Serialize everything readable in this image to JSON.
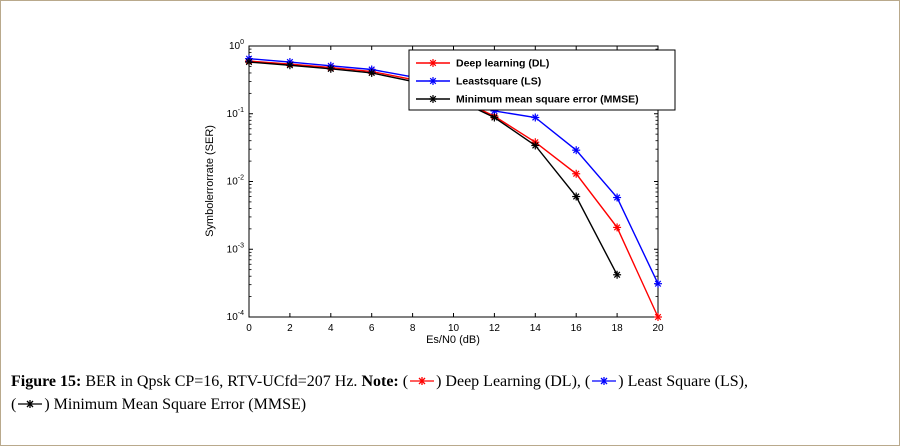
{
  "colors": {
    "dl": "#ff0000",
    "ls": "#0000ff",
    "mmse": "#000000",
    "axis": "#000000",
    "frame_border": "#b9a98c",
    "background": "#ffffff"
  },
  "chart_data": {
    "type": "line",
    "title": "",
    "xlabel": "Es/N0 (dB)",
    "ylabel": "Symbolerrorrate (SER)",
    "xlim": [
      0,
      20
    ],
    "ylog_min": -4,
    "ylog_max": 0,
    "xticks": [
      0,
      2,
      4,
      6,
      8,
      10,
      12,
      14,
      16,
      18,
      20
    ],
    "ytick_exponents": [
      0,
      -1,
      -2,
      -3,
      -4
    ],
    "grid": false,
    "legend": {
      "position": "upper-right-inside",
      "bold": true,
      "border": "#000000",
      "fill": "#ffffff"
    },
    "series": [
      {
        "name": "Deep learning (DL)",
        "color": "#ff0000",
        "marker": "asterisk",
        "x": [
          0,
          2,
          4,
          6,
          8,
          10,
          12,
          14,
          16,
          18,
          20
        ],
        "y": [
          0.6,
          0.54,
          0.48,
          0.42,
          0.32,
          0.18,
          0.092,
          0.038,
          0.013,
          0.0021,
          0.0001
        ]
      },
      {
        "name": "Leastsquare (LS)",
        "color": "#0000ff",
        "marker": "asterisk",
        "x": [
          0,
          2,
          4,
          6,
          8,
          10,
          12,
          14,
          16,
          18,
          20
        ],
        "y": [
          0.65,
          0.58,
          0.51,
          0.45,
          0.35,
          0.2,
          0.11,
          0.088,
          0.029,
          0.0058,
          0.00031
        ]
      },
      {
        "name": "Minimum mean square error (MMSE)",
        "color": "#000000",
        "marker": "asterisk",
        "x": [
          0,
          2,
          4,
          6,
          8,
          10,
          12,
          14,
          16,
          18
        ],
        "y": [
          0.58,
          0.52,
          0.46,
          0.4,
          0.3,
          0.17,
          0.088,
          0.034,
          0.006,
          0.00042
        ]
      }
    ]
  },
  "caption": {
    "line1": [
      {
        "type": "bold",
        "text": "Figure 15:"
      },
      {
        "type": "text",
        "text": " BER in Qpsk CP=16, RTV-UCfd=207 Hz. "
      },
      {
        "type": "bold",
        "text": "Note:"
      },
      {
        "type": "text",
        "text": " ("
      },
      {
        "type": "marker",
        "color": "#ff0000",
        "name": "dl-caption-marker-icon"
      },
      {
        "type": "text",
        "text": ") Deep Learning (DL), ("
      },
      {
        "type": "marker",
        "color": "#0000ff",
        "name": "ls-caption-marker-icon"
      },
      {
        "type": "text",
        "text": ") Least Square (LS),"
      }
    ],
    "line2": [
      {
        "type": "text",
        "text": "("
      },
      {
        "type": "marker",
        "color": "#000000",
        "name": "mmse-caption-marker-icon"
      },
      {
        "type": "text",
        "text": ") Minimum Mean Square Error (MMSE)"
      }
    ]
  }
}
